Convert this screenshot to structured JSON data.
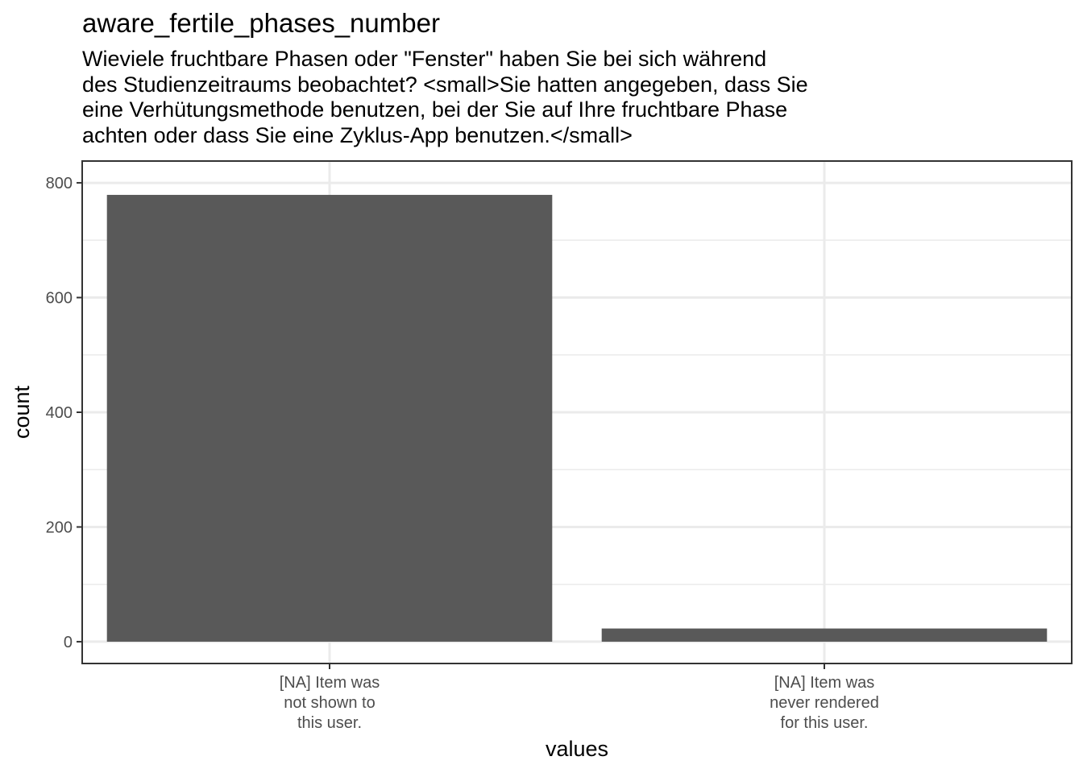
{
  "chart_data": {
    "type": "bar",
    "title": "aware_fertile_phases_number",
    "subtitle_lines": [
      "Wieviele fruchtbare Phasen oder \"Fenster\" haben Sie bei sich während",
      "des Studienzeitraums beobachtet? <small>Sie hatten angegeben, dass Sie",
      "eine Verhütungsmethode benutzen, bei der Sie auf Ihre fruchtbare Phase",
      "achten oder dass Sie eine Zyklus-App benutzen.</small>"
    ],
    "xlabel": "values",
    "ylabel": "count",
    "categories": [
      [
        "[NA] Item was",
        "not shown to",
        "this user."
      ],
      [
        "[NA] Item was",
        "never rendered",
        "for this user."
      ]
    ],
    "values": [
      779,
      23
    ],
    "ylim": [
      -38,
      838
    ],
    "yticks": [
      0,
      200,
      400,
      600,
      800
    ],
    "yticks_minor": [
      100,
      300,
      500,
      700
    ],
    "grid": true,
    "bar_color": "#595959",
    "grid_color": "#ebebeb",
    "panel_border_color": "#333333"
  }
}
